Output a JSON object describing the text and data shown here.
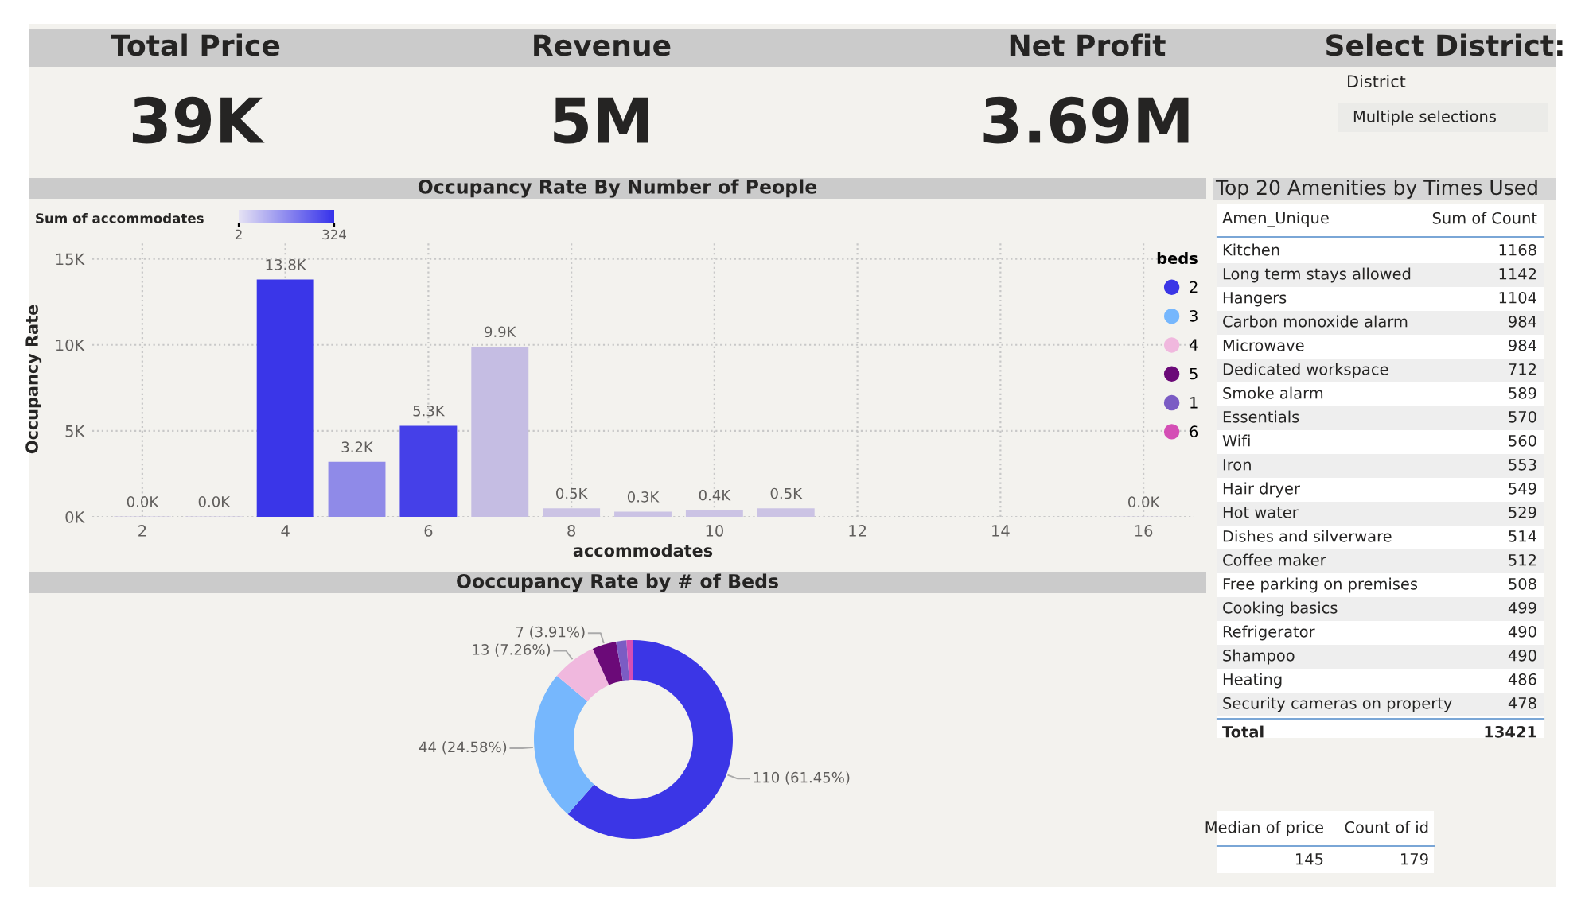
{
  "chart_data": [
    {
      "type": "other",
      "title": "Total Price",
      "annotations": [
        "39K"
      ]
    },
    {
      "type": "other",
      "title": "Revenue",
      "annotations": [
        "5M"
      ]
    },
    {
      "type": "other",
      "title": "Net Profit",
      "annotations": [
        "3.69M"
      ]
    },
    {
      "type": "other",
      "title": "Select District:",
      "annotations": [
        "District",
        "Multiple selections"
      ]
    },
    {
      "type": "bar",
      "title": "Occupancy Rate By Number of People",
      "xlabel": "accommodates",
      "ylabel": "Occupancy Rate",
      "clabel": "Sum of accommodates",
      "clim": [
        2,
        324
      ],
      "cticks": [
        2,
        324
      ],
      "x": [
        2,
        3,
        4,
        5,
        6,
        7,
        8,
        9,
        10,
        11,
        16
      ],
      "values": [
        20,
        20,
        13800,
        3200,
        5300,
        9900,
        500,
        300,
        400,
        500,
        10
      ],
      "colors": [
        "#cfc8e6",
        "#cfc8e6",
        "#3a36e8",
        "#8f8ae8",
        "#4540e8",
        "#c5bde3",
        "#cbc3e4",
        "#cbc3e4",
        "#cbc3e4",
        "#cbc3e4",
        "#cfc8e6"
      ],
      "value_labels": [
        "0.0K",
        "0.0K",
        "13.8K",
        "3.2K",
        "5.3K",
        "9.9K",
        "0.5K",
        "0.3K",
        "0.4K",
        "0.5K",
        "0.0K"
      ],
      "xlim": [
        1.3,
        16.7
      ],
      "xticks": [
        2,
        4,
        6,
        8,
        10,
        12,
        14,
        16
      ],
      "ylim": [
        0,
        16000
      ],
      "yticks": [
        {
          "value": 0,
          "label": "0K"
        },
        {
          "value": 5000,
          "label": "5K"
        },
        {
          "value": 10000,
          "label": "10K"
        },
        {
          "value": 15000,
          "label": "15K"
        }
      ],
      "grid": true
    },
    {
      "type": "donut",
      "title": "Ooccupancy Rate by # of Beds",
      "legend_title": "beds",
      "legend": "right",
      "categories": [
        "2",
        "3",
        "4",
        "5",
        "1",
        "6"
      ],
      "values": [
        110,
        44,
        13,
        7,
        3,
        2
      ],
      "colors": [
        "#3b36e6",
        "#76b7fd",
        "#f0b8de",
        "#6b0a78",
        "#7b5cc4",
        "#d44fb5"
      ],
      "value_labels": [
        "110 (61.45%)",
        "44 (24.58%)",
        "13 (7.26%)",
        "7 (3.91%)",
        null,
        null
      ]
    },
    {
      "type": "other",
      "title": "Top 20 Amenities by Times Used",
      "xlabel": "Amen_Unique",
      "ylabel": "Sum of Count",
      "categories": [
        "Kitchen",
        "Long term stays allowed",
        "Hangers",
        "Carbon monoxide alarm",
        "Microwave",
        "Dedicated workspace",
        "Smoke alarm",
        "Essentials",
        "Wifi",
        "Iron",
        "Hair dryer",
        "Hot water",
        "Dishes and silverware",
        "Coffee maker",
        "Free parking on premises",
        "Cooking basics",
        "Refrigerator",
        "Shampoo",
        "Heating",
        "Security cameras on property"
      ],
      "values": [
        1168,
        1142,
        1104,
        984,
        984,
        712,
        589,
        570,
        560,
        553,
        549,
        529,
        514,
        512,
        508,
        499,
        490,
        490,
        486,
        478
      ],
      "annotations": [
        "Total",
        "13421"
      ],
      "data_labels": true
    },
    {
      "type": "other",
      "categories": [
        "Median of price",
        "Count of id"
      ],
      "values": [
        145,
        179
      ],
      "data_labels": true
    }
  ]
}
